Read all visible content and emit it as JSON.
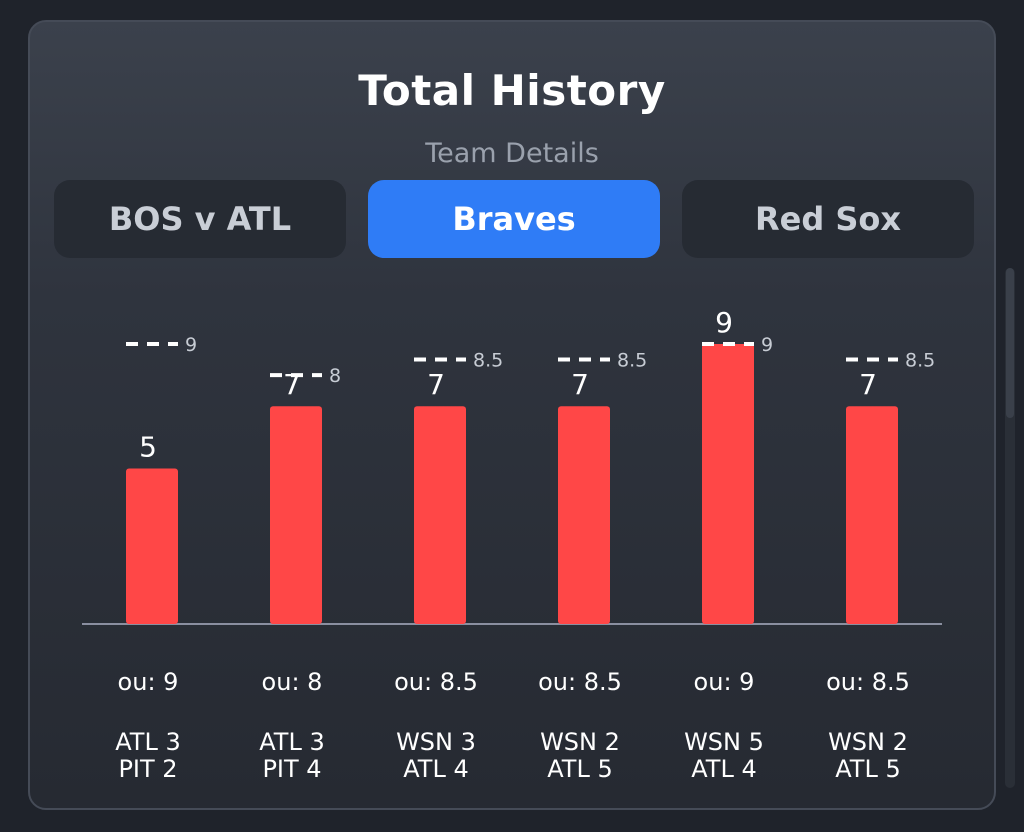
{
  "header": {
    "title": "Total History",
    "subtitle": "Team Details"
  },
  "tabs": [
    {
      "label": "BOS v ATL",
      "active": false
    },
    {
      "label": "Braves",
      "active": true
    },
    {
      "label": "Red Sox",
      "active": false
    }
  ],
  "colors": {
    "bar": "#ff4747",
    "tab_active": "#2f7cf6",
    "baseline": "#8a8fa0",
    "line_marker": "#ffffff",
    "text": "#ffffff"
  },
  "chart_data": {
    "type": "bar",
    "categories": [
      "ATL 3 PIT 2",
      "ATL 3 PIT 4",
      "WSN 3 ATL 4",
      "WSN 2 ATL 5",
      "WSN 5 ATL 4",
      "WSN 2 ATL 5"
    ],
    "values": [
      5,
      7,
      7,
      7,
      9,
      7
    ],
    "ou_lines": [
      9,
      8,
      8.5,
      8.5,
      9,
      8.5
    ],
    "ou_labels": [
      "ou: 9",
      "ou: 8",
      "ou: 8.5",
      "ou: 8.5",
      "ou: 9",
      "ou: 8.5"
    ],
    "game_lines": [
      [
        "ATL 3",
        "PIT 2"
      ],
      [
        "ATL 3",
        "PIT 4"
      ],
      [
        "WSN 3",
        "ATL 4"
      ],
      [
        "WSN 2",
        "ATL 5"
      ],
      [
        "WSN 5",
        "ATL 4"
      ],
      [
        "WSN 2",
        "ATL 5"
      ]
    ],
    "title": "Total History",
    "xlabel": "",
    "ylabel": "",
    "ylim": [
      0,
      9.9
    ],
    "grid": false
  }
}
